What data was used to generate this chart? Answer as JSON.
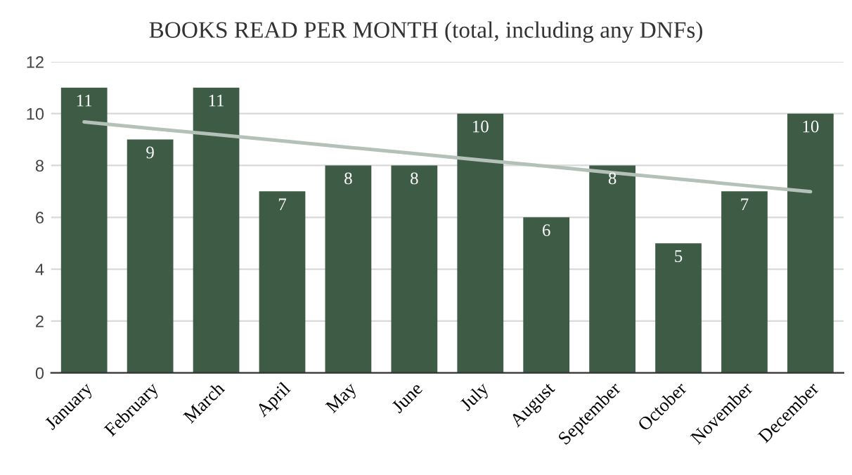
{
  "chart_data": {
    "type": "bar",
    "title": "BOOKS READ PER MONTH (total, including any DNFs)",
    "categories": [
      "January",
      "February",
      "March",
      "April",
      "May",
      "June",
      "July",
      "August",
      "September",
      "October",
      "November",
      "December"
    ],
    "series": [
      {
        "color": "#3d5b45",
        "values": [
          11,
          9,
          11,
          7,
          8,
          8,
          10,
          6,
          8,
          5,
          7,
          10
        ],
        "value_labels": [
          "11",
          "9",
          "11",
          "7",
          "8",
          "8",
          "10",
          "6",
          "8",
          "5",
          "7",
          "10"
        ]
      },
      {
        "type": "line",
        "color": "#b3c1b9",
        "values": [
          9.68,
          9.43,
          9.19,
          8.95,
          8.7,
          8.46,
          8.21,
          7.97,
          7.72,
          7.48,
          7.23,
          6.99
        ]
      }
    ],
    "ylim": [
      0,
      12
    ],
    "yticks": [
      0,
      2,
      4,
      6,
      8,
      10,
      12
    ],
    "grid": "y",
    "legend": false
  }
}
